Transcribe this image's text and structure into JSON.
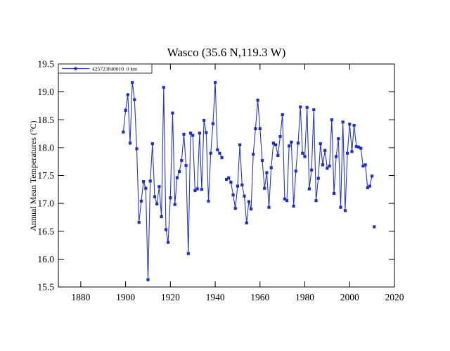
{
  "chart_data": {
    "type": "line",
    "title": "Wasco (35.6 N,119.3 W)",
    "xlabel": "",
    "ylabel": "Annual Mean Temperatures (°C)",
    "xlim": [
      1870,
      2020
    ],
    "ylim": [
      15.5,
      19.5
    ],
    "xticks": [
      1880,
      1900,
      1920,
      1940,
      1960,
      1980,
      2000,
      2020
    ],
    "yticks": [
      15.5,
      16.0,
      16.5,
      17.0,
      17.5,
      18.0,
      18.5,
      19.0,
      19.5
    ],
    "grid": false,
    "legend_position": "top-left",
    "legend": [
      {
        "label": "425723840010  0 km",
        "color": "#2537cf",
        "marker": "square"
      }
    ],
    "line_color": "#2537cf",
    "marker_color": "#1f2ec6",
    "axis_color": "#000000",
    "missing_years": [
      1944
    ],
    "series": [
      {
        "name": "425723840010 0 km",
        "segments": [
          [
            [
              1899,
              18.28
            ],
            [
              1900,
              18.67
            ],
            [
              1901,
              18.95
            ],
            [
              1902,
              18.08
            ],
            [
              1903,
              19.17
            ],
            [
              1904,
              18.86
            ],
            [
              1905,
              17.98
            ],
            [
              1906,
              16.66
            ],
            [
              1907,
              17.04
            ],
            [
              1908,
              17.39
            ],
            [
              1909,
              17.27
            ],
            [
              1910,
              15.63
            ],
            [
              1911,
              17.4
            ],
            [
              1912,
              18.07
            ],
            [
              1913,
              17.12
            ],
            [
              1914,
              16.99
            ],
            [
              1915,
              17.3
            ],
            [
              1916,
              16.76
            ],
            [
              1917,
              19.08
            ],
            [
              1918,
              16.53
            ],
            [
              1919,
              16.3
            ],
            [
              1920,
              17.1
            ],
            [
              1921,
              18.62
            ],
            [
              1922,
              16.98
            ],
            [
              1923,
              17.46
            ],
            [
              1924,
              17.57
            ],
            [
              1925,
              17.77
            ],
            [
              1926,
              18.24
            ],
            [
              1927,
              17.68
            ],
            [
              1928,
              16.1
            ],
            [
              1929,
              18.26
            ],
            [
              1930,
              18.22
            ],
            [
              1931,
              17.23
            ],
            [
              1932,
              17.26
            ],
            [
              1933,
              18.26
            ],
            [
              1934,
              17.25
            ],
            [
              1935,
              18.49
            ],
            [
              1936,
              18.27
            ],
            [
              1937,
              17.04
            ],
            [
              1938,
              17.9
            ],
            [
              1939,
              18.43
            ],
            [
              1940,
              19.17
            ],
            [
              1941,
              17.96
            ],
            [
              1942,
              17.9
            ],
            [
              1943,
              17.82
            ]
          ],
          [
            [
              1945,
              17.43
            ],
            [
              1946,
              17.46
            ],
            [
              1947,
              17.38
            ],
            [
              1948,
              17.15
            ],
            [
              1949,
              16.91
            ],
            [
              1950,
              17.31
            ],
            [
              1951,
              18.05
            ],
            [
              1952,
              17.33
            ],
            [
              1953,
              17.13
            ],
            [
              1954,
              16.65
            ],
            [
              1955,
              17.03
            ],
            [
              1956,
              16.9
            ],
            [
              1957,
              17.88
            ],
            [
              1958,
              18.34
            ],
            [
              1959,
              18.85
            ],
            [
              1960,
              18.34
            ],
            [
              1961,
              17.77
            ],
            [
              1962,
              17.27
            ],
            [
              1963,
              17.55
            ],
            [
              1964,
              16.93
            ],
            [
              1965,
              17.64
            ],
            [
              1966,
              18.08
            ],
            [
              1967,
              18.05
            ],
            [
              1968,
              17.86
            ],
            [
              1969,
              18.2
            ],
            [
              1970,
              18.59
            ],
            [
              1971,
              17.08
            ],
            [
              1972,
              17.05
            ],
            [
              1973,
              18.03
            ],
            [
              1974,
              18.1
            ],
            [
              1975,
              16.95
            ],
            [
              1976,
              17.58
            ],
            [
              1977,
              18.08
            ],
            [
              1978,
              18.73
            ],
            [
              1979,
              17.9
            ],
            [
              1980,
              17.84
            ],
            [
              1981,
              18.72
            ],
            [
              1982,
              17.26
            ],
            [
              1983,
              17.6
            ],
            [
              1984,
              18.68
            ],
            [
              1985,
              17.05
            ],
            [
              1986,
              17.45
            ],
            [
              1987,
              18.07
            ],
            [
              1988,
              17.69
            ],
            [
              1989,
              17.95
            ],
            [
              1990,
              17.63
            ],
            [
              1991,
              17.67
            ],
            [
              1992,
              18.5
            ],
            [
              1993,
              17.18
            ],
            [
              1994,
              17.84
            ],
            [
              1995,
              18.16
            ],
            [
              1996,
              16.93
            ],
            [
              1997,
              18.46
            ],
            [
              1998,
              16.87
            ],
            [
              1999,
              17.9
            ],
            [
              2000,
              18.42
            ],
            [
              2001,
              17.93
            ],
            [
              2002,
              18.4
            ],
            [
              2003,
              18.02
            ],
            [
              2004,
              18.01
            ],
            [
              2005,
              17.99
            ],
            [
              2006,
              17.67
            ],
            [
              2007,
              17.69
            ],
            [
              2008,
              17.28
            ],
            [
              2009,
              17.31
            ],
            [
              2010,
              17.49
            ]
          ]
        ],
        "isolated_points": [
          [
            2011,
            16.58
          ]
        ]
      }
    ]
  }
}
